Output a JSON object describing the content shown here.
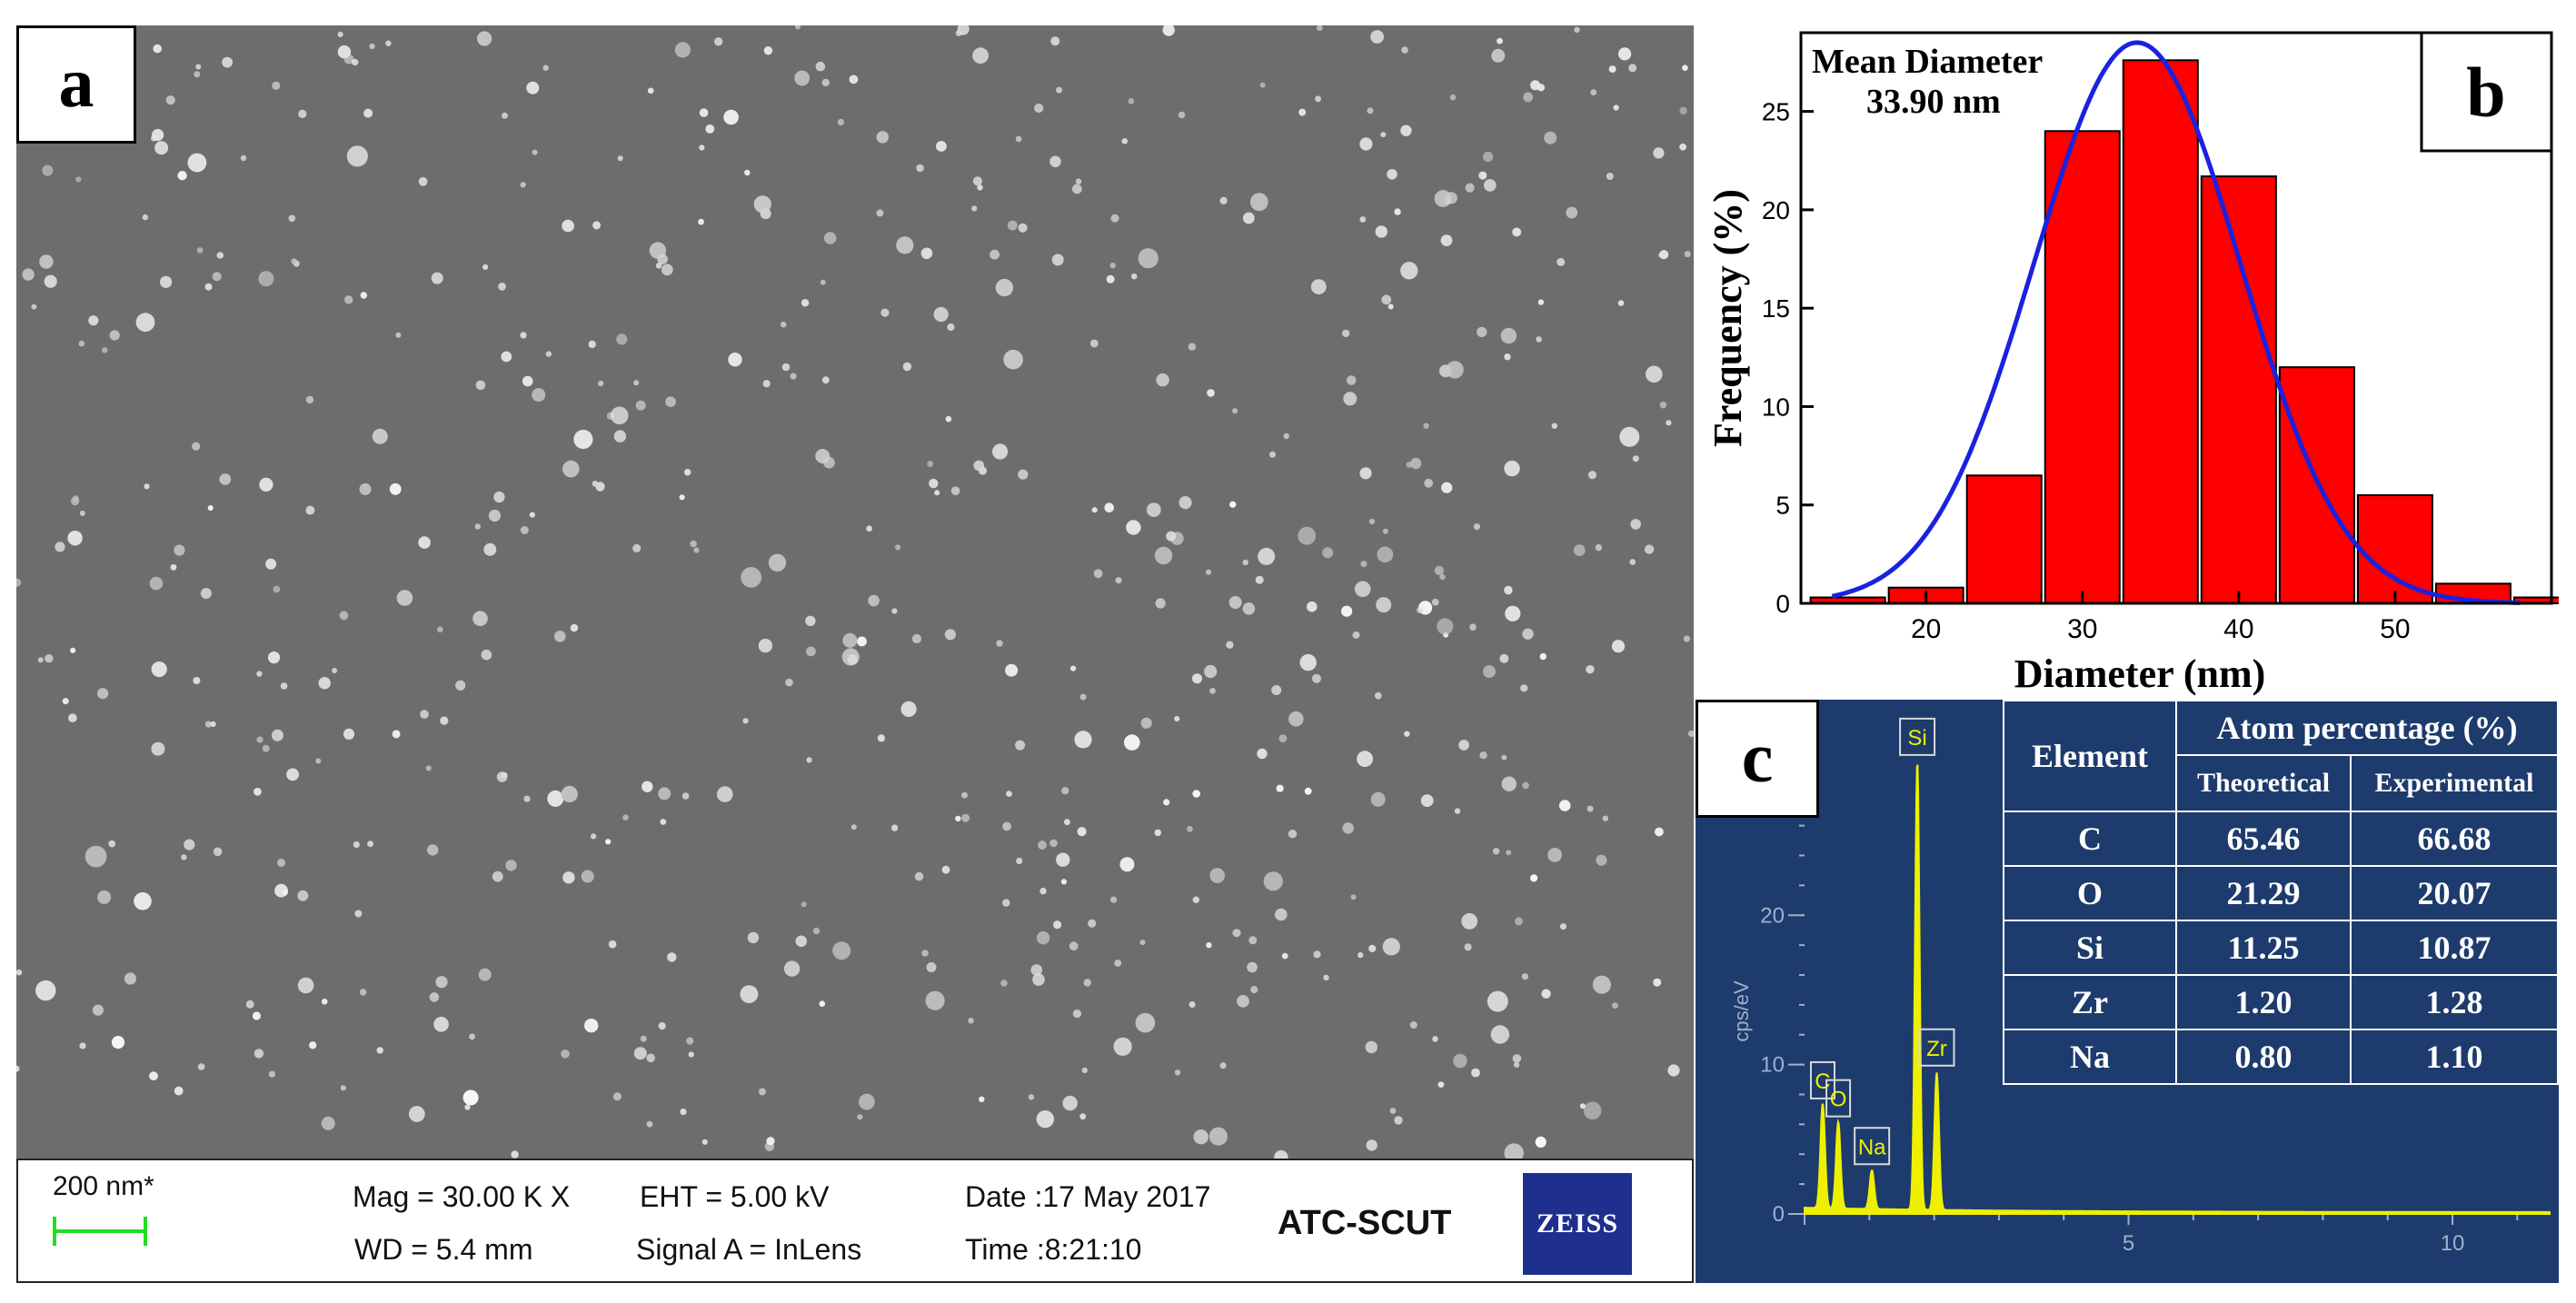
{
  "panel_a": {
    "label": "a",
    "sem_info": {
      "scale_bar": "200 nm*",
      "mag": "Mag =   30.00 K X",
      "wd": "WD =  5.4 mm",
      "eht": "EHT =  5.00 kV",
      "signal": "Signal A = InLens",
      "date": "Date :17 May 2017",
      "time": "Time :8:21:10",
      "lab": "ATC-SCUT",
      "logo": "ZEISS"
    }
  },
  "chart_data": [
    {
      "type": "bar",
      "panel_label": "b",
      "xlabel": "Diameter (nm)",
      "ylabel": "Frequency (%)",
      "bin_centers": [
        15,
        20,
        25,
        30,
        35,
        40,
        45,
        50,
        55,
        60
      ],
      "values": [
        0.3,
        0.8,
        6.5,
        24,
        27.6,
        21.7,
        12,
        5.5,
        1,
        0.3
      ],
      "xlim": [
        12,
        60
      ],
      "ylim": [
        0,
        29
      ],
      "xticks": [
        20,
        30,
        40,
        50
      ],
      "yticks": [
        0,
        5,
        10,
        15,
        20,
        25
      ],
      "fit": {
        "type": "gaussian",
        "mean": 33.5,
        "sigma": 6.6,
        "peak": 28.5,
        "from": 14,
        "to": 58
      },
      "annotation": [
        "Mean Diameter",
        "33.90 nm"
      ],
      "colors": {
        "bar": "#ff0000",
        "fit": "#1a22e0"
      }
    },
    {
      "type": "line",
      "panel_label": "c",
      "ylabel": "cps/eV",
      "xlim": [
        0,
        11.5
      ],
      "ylim": [
        0,
        32
      ],
      "xticks": [
        5,
        10
      ],
      "yticks": [
        0,
        10,
        20
      ],
      "peaks": [
        {
          "label": "C",
          "energy": 0.28,
          "height": 7.0
        },
        {
          "label": "O",
          "energy": 0.52,
          "height": 5.8
        },
        {
          "label": "Na",
          "energy": 1.04,
          "height": 2.6
        },
        {
          "label": "Si",
          "energy": 1.74,
          "height": 30.0
        },
        {
          "label": "Zr",
          "energy": 2.04,
          "height": 9.2
        }
      ],
      "colors": {
        "background": "#1d3b6c",
        "spectrum": "#eef000",
        "axis": "#9fb0cc"
      }
    }
  ],
  "panel_c": {
    "label": "c",
    "table": {
      "headers": {
        "element": "Element",
        "group": "Atom percentage (%)",
        "theoretical": "Theoretical",
        "experimental": "Experimental"
      },
      "rows": [
        {
          "element": "C",
          "theoretical": "65.46",
          "experimental": "66.68"
        },
        {
          "element": "O",
          "theoretical": "21.29",
          "experimental": "20.07"
        },
        {
          "element": "Si",
          "theoretical": "11.25",
          "experimental": "10.87"
        },
        {
          "element": "Zr",
          "theoretical": "1.20",
          "experimental": "1.28"
        },
        {
          "element": "Na",
          "theoretical": "0.80",
          "experimental": "1.10"
        }
      ]
    }
  }
}
